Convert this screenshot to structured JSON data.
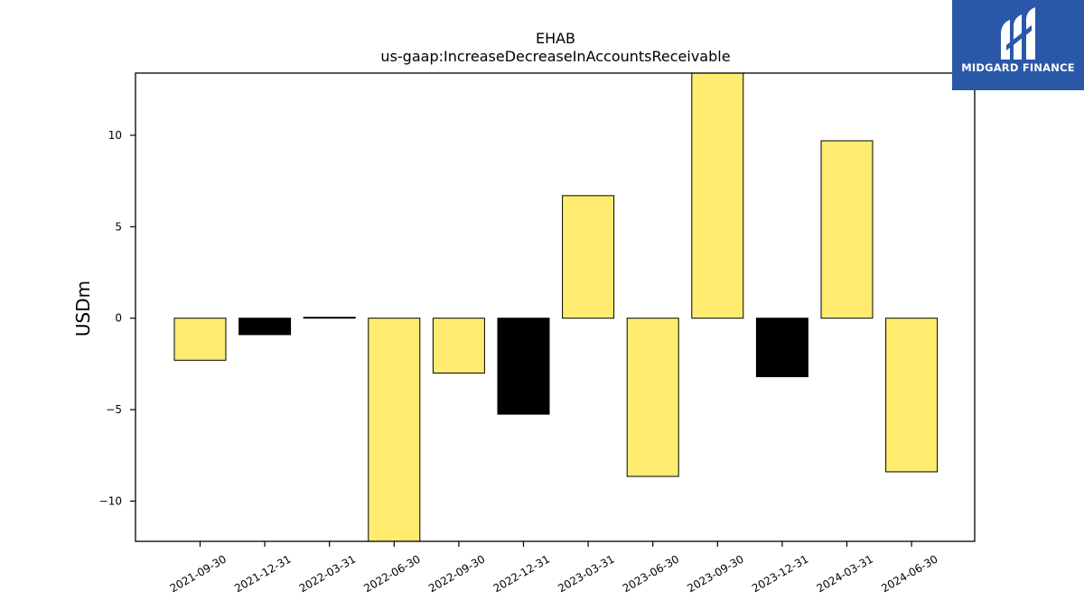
{
  "chart_data": {
    "type": "bar",
    "title": "EHAB",
    "subtitle": "us-gaap:IncreaseDecreaseInAccountsReceivable",
    "xlabel": "",
    "ylabel": "USDm",
    "ylim": [
      -12.2,
      13.4
    ],
    "yticks": [
      -10,
      -5,
      0,
      5,
      10
    ],
    "ytick_labels": [
      "−10",
      "−5",
      "0",
      "5",
      "10"
    ],
    "categories": [
      "2021-09-30",
      "2021-12-31",
      "2022-03-31",
      "2022-06-30",
      "2022-09-30",
      "2022-12-31",
      "2023-03-31",
      "2023-06-30",
      "2023-09-30",
      "2023-12-31",
      "2024-03-31",
      "2024-06-30"
    ],
    "values": [
      -2.3,
      -0.9,
      0.05,
      -12.2,
      -3.0,
      -5.25,
      6.7,
      -8.65,
      13.4,
      -3.2,
      9.7,
      -8.4
    ],
    "bar_colors": [
      "#ffeb70",
      "#000000",
      "#ffeb70",
      "#ffeb70",
      "#ffeb70",
      "#000000",
      "#ffeb70",
      "#ffeb70",
      "#ffeb70",
      "#000000",
      "#ffeb70",
      "#ffeb70"
    ],
    "grid": false,
    "legend": "none"
  },
  "logo": {
    "text": "MIDGARD FINANCE",
    "background": "#2a57a8",
    "icon": "midgard-logo-icon"
  }
}
